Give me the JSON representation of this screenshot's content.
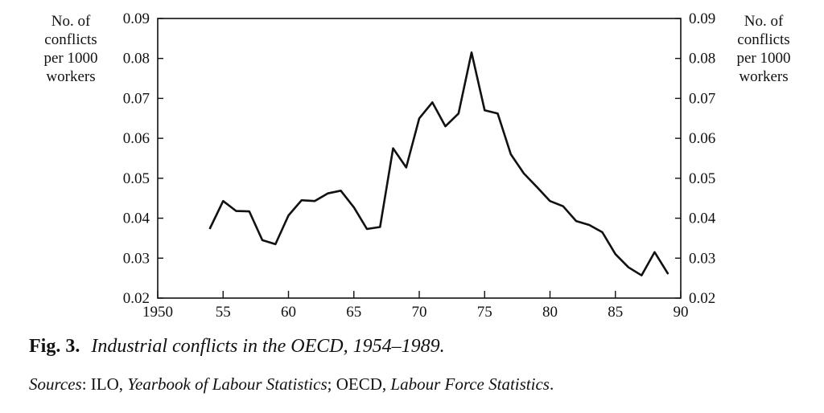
{
  "chart_data": {
    "type": "line",
    "title": "",
    "ylabel_left": [
      "No. of",
      "conflicts",
      "per 1000",
      "workers"
    ],
    "ylabel_right": [
      "No. of",
      "conflicts",
      "per 1000",
      "workers"
    ],
    "xlim": [
      1950,
      1990
    ],
    "ylim": [
      0.02,
      0.09
    ],
    "x_ticks": [
      1950,
      1955,
      1960,
      1965,
      1970,
      1975,
      1980,
      1985,
      1990
    ],
    "x_tick_labels": [
      "1950",
      "55",
      "60",
      "65",
      "70",
      "75",
      "80",
      "85",
      "90"
    ],
    "y_ticks": [
      0.02,
      0.03,
      0.04,
      0.05,
      0.06,
      0.07,
      0.08,
      0.09
    ],
    "y_tick_labels": [
      "0.02",
      "0.03",
      "0.04",
      "0.05",
      "0.06",
      "0.07",
      "0.08",
      "0.09"
    ],
    "grid": false,
    "series": [
      {
        "x": [
          1954,
          1955,
          1956,
          1957,
          1958,
          1959,
          1960,
          1961,
          1962,
          1963,
          1964,
          1965,
          1966,
          1967,
          1968,
          1969,
          1970,
          1971,
          1972,
          1973,
          1974,
          1975,
          1976,
          1977,
          1978,
          1979,
          1980,
          1981,
          1982,
          1983,
          1984,
          1985,
          1986,
          1987,
          1988,
          1989
        ],
        "values": [
          0.0375,
          0.0443,
          0.0418,
          0.0417,
          0.0345,
          0.0335,
          0.0407,
          0.0445,
          0.0443,
          0.0462,
          0.0469,
          0.0427,
          0.0373,
          0.0378,
          0.0575,
          0.0527,
          0.065,
          0.069,
          0.063,
          0.0662,
          0.0815,
          0.067,
          0.0662,
          0.056,
          0.0512,
          0.0478,
          0.0443,
          0.043,
          0.0393,
          0.0383,
          0.0365,
          0.031,
          0.0277,
          0.0257,
          0.0315,
          0.0262
        ]
      }
    ]
  },
  "caption": {
    "fig_label": "Fig. 3.",
    "fig_title": "Industrial conflicts in the OECD, 1954–1989."
  },
  "sources": {
    "prefix": "Sources",
    "sep1": ": ILO, ",
    "title1": "Yearbook of Labour Statistics",
    "sep2": "; OECD, ",
    "title2": "Labour Force Statistics",
    "end": "."
  }
}
